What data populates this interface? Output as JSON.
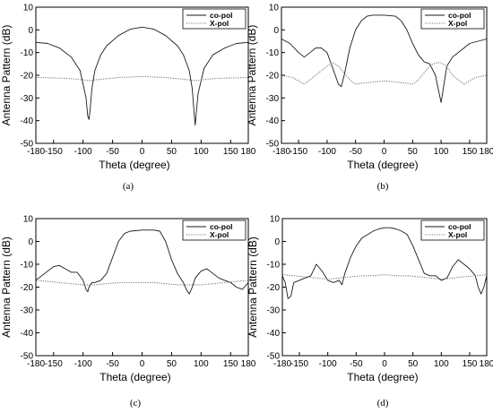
{
  "chart_data": [
    {
      "type": "line",
      "caption": "(a)",
      "xlabel": "Theta (degree)",
      "ylabel": "Antenna Pattern (dB)",
      "xlim": [
        -180,
        180
      ],
      "ylim": [
        -50,
        10
      ],
      "xticks": [
        "-180",
        "-150",
        "-100",
        "-50",
        "0",
        "50",
        "100",
        "150",
        "180"
      ],
      "yticks": [
        "10",
        "0",
        "-10",
        "-20",
        "-30",
        "-40",
        "-50"
      ],
      "grid": false,
      "legend": "top-right",
      "series": [
        {
          "name": "co-pol",
          "style": "solid",
          "x": [
            -180,
            -160,
            -140,
            -120,
            -105,
            -95,
            -92,
            -90,
            -88,
            -85,
            -80,
            -70,
            -60,
            -40,
            -20,
            0,
            20,
            40,
            60,
            70,
            80,
            85,
            88,
            90,
            92,
            95,
            105,
            120,
            140,
            160,
            180
          ],
          "y": [
            -5.5,
            -6,
            -8,
            -12,
            -18,
            -30,
            -38,
            -39.5,
            -35,
            -26,
            -18,
            -11,
            -7,
            -2.5,
            0.3,
            1.2,
            0.3,
            -2.5,
            -7,
            -11,
            -18,
            -26,
            -36,
            -42,
            -36,
            -28,
            -17,
            -11,
            -8,
            -6,
            -5.5
          ]
        },
        {
          "name": "X-pol",
          "style": "dotted",
          "x": [
            -180,
            -150,
            -120,
            -100,
            -90,
            -80,
            -60,
            -40,
            -20,
            0,
            20,
            40,
            60,
            80,
            90,
            100,
            120,
            150,
            180
          ],
          "y": [
            -21,
            -21.2,
            -21.5,
            -22,
            -22.5,
            -22,
            -21.5,
            -21,
            -20.8,
            -20.5,
            -20.8,
            -21,
            -21.5,
            -22,
            -22.5,
            -22,
            -21.5,
            -21.2,
            -21
          ]
        }
      ]
    },
    {
      "type": "line",
      "caption": "(b)",
      "xlabel": "Theta (degree)",
      "ylabel": "Antenna Pattern (dB)",
      "xlim": [
        -180,
        180
      ],
      "ylim": [
        -50,
        10
      ],
      "xticks": [
        "-180",
        "-150",
        "-100",
        "-50",
        "0",
        "50",
        "100",
        "150",
        "180"
      ],
      "yticks": [
        "10",
        "0",
        "-10",
        "-20",
        "-30",
        "-40",
        "-50"
      ],
      "grid": false,
      "legend": "top-right",
      "series": [
        {
          "name": "co-pol",
          "style": "solid",
          "x": [
            -180,
            -165,
            -150,
            -140,
            -130,
            -120,
            -110,
            -100,
            -90,
            -80,
            -75,
            -70,
            -60,
            -50,
            -40,
            -30,
            -20,
            0,
            20,
            30,
            40,
            50,
            60,
            70,
            80,
            90,
            95,
            100,
            105,
            110,
            120,
            130,
            140,
            150,
            165,
            180
          ],
          "y": [
            -4,
            -6,
            -10,
            -12,
            -10,
            -8,
            -8,
            -10,
            -17,
            -24,
            -25,
            -20,
            -8,
            0,
            4,
            6,
            6.5,
            6.5,
            6,
            4,
            0,
            -6,
            -11,
            -14,
            -15,
            -20,
            -26,
            -32,
            -24,
            -16,
            -12,
            -10,
            -8,
            -6,
            -5,
            -4
          ]
        },
        {
          "name": "X-pol",
          "style": "dotted",
          "x": [
            -180,
            -160,
            -140,
            -120,
            -100,
            -90,
            -80,
            -70,
            -60,
            -50,
            -40,
            -20,
            0,
            20,
            40,
            50,
            60,
            70,
            80,
            90,
            100,
            110,
            120,
            140,
            160,
            180
          ],
          "y": [
            -20,
            -21,
            -24,
            -20,
            -16,
            -14.5,
            -16,
            -19,
            -22,
            -24,
            -23.5,
            -23,
            -22.5,
            -23,
            -23.5,
            -24,
            -22,
            -19,
            -16,
            -14.5,
            -14.5,
            -16,
            -20,
            -24,
            -21,
            -20
          ]
        }
      ]
    },
    {
      "type": "line",
      "caption": "(c)",
      "xlabel": "Theta (degree)",
      "ylabel": "Antenna Pattern (dB)",
      "xlim": [
        -180,
        180
      ],
      "ylim": [
        -50,
        10
      ],
      "xticks": [
        "-180",
        "-150",
        "-100",
        "-50",
        "0",
        "50",
        "100",
        "150",
        "180"
      ],
      "yticks": [
        "10",
        "0",
        "-10",
        "-20",
        "-30",
        "-40",
        "-50"
      ],
      "grid": false,
      "legend": "top-right",
      "series": [
        {
          "name": "co-pol",
          "style": "solid",
          "x": [
            -180,
            -165,
            -150,
            -140,
            -130,
            -120,
            -110,
            -100,
            -95,
            -92,
            -90,
            -85,
            -80,
            -70,
            -60,
            -50,
            -40,
            -30,
            -20,
            0,
            20,
            30,
            40,
            50,
            60,
            70,
            75,
            80,
            85,
            90,
            100,
            110,
            120,
            130,
            140,
            150,
            160,
            170,
            180
          ],
          "y": [
            -17,
            -14,
            -11,
            -10.5,
            -12,
            -13.5,
            -13.5,
            -17,
            -21,
            -22,
            -20,
            -18,
            -18,
            -17,
            -14,
            -7,
            0,
            3.5,
            4.5,
            5,
            5,
            4.5,
            0,
            -8,
            -14,
            -18,
            -21,
            -23,
            -20,
            -16,
            -13,
            -12,
            -14,
            -16,
            -17,
            -18,
            -20,
            -21,
            -18
          ]
        },
        {
          "name": "X-pol",
          "style": "dotted",
          "x": [
            -180,
            -160,
            -140,
            -120,
            -100,
            -90,
            -80,
            -60,
            -40,
            -20,
            0,
            20,
            40,
            60,
            80,
            90,
            100,
            120,
            140,
            160,
            180
          ],
          "y": [
            -17,
            -17.5,
            -18,
            -18.5,
            -19,
            -19,
            -19,
            -18.5,
            -18,
            -18,
            -18,
            -18,
            -18.5,
            -19,
            -19,
            -19,
            -19,
            -18.5,
            -18,
            -17.5,
            -17
          ]
        }
      ]
    },
    {
      "type": "line",
      "caption": "(d)",
      "xlabel": "Theta (degree)",
      "ylabel": "Antenna Pattern (dB)",
      "xlim": [
        -180,
        180
      ],
      "ylim": [
        -50,
        10
      ],
      "xticks": [
        "-180",
        "-150",
        "-100",
        "-50",
        "0",
        "50",
        "100",
        "150",
        "180"
      ],
      "yticks": [
        "10",
        "0",
        "-10",
        "-20",
        "-30",
        "-40",
        "-50"
      ],
      "grid": false,
      "legend": "top-right",
      "series": [
        {
          "name": "co-pol",
          "style": "solid",
          "x": [
            -180,
            -175,
            -170,
            -165,
            -160,
            -150,
            -140,
            -130,
            -120,
            -110,
            -100,
            -90,
            -80,
            -75,
            -70,
            -60,
            -50,
            -40,
            -30,
            -20,
            -10,
            0,
            10,
            20,
            30,
            40,
            50,
            60,
            70,
            80,
            90,
            100,
            110,
            120,
            130,
            140,
            150,
            160,
            165,
            170,
            175,
            180
          ],
          "y": [
            -15,
            -18,
            -25,
            -24,
            -18,
            -17,
            -16,
            -15,
            -10,
            -13,
            -17,
            -18,
            -17,
            -19,
            -14,
            -7,
            -2,
            1.5,
            3,
            4.5,
            5.5,
            6,
            6,
            5.5,
            4.5,
            3,
            -2,
            -8,
            -14,
            -15,
            -15,
            -17,
            -16,
            -11,
            -8,
            -10,
            -12,
            -15,
            -20,
            -23,
            -20,
            -15
          ]
        },
        {
          "name": "X-pol",
          "style": "dotted",
          "x": [
            -180,
            -160,
            -140,
            -120,
            -100,
            -80,
            -60,
            -40,
            -20,
            0,
            20,
            40,
            60,
            80,
            100,
            120,
            140,
            160,
            180
          ],
          "y": [
            -14.5,
            -15,
            -15.5,
            -16,
            -16.5,
            -16,
            -15.5,
            -15,
            -15,
            -14.5,
            -15,
            -15,
            -15.5,
            -16,
            -16.5,
            -16,
            -15.5,
            -15,
            -14.5
          ]
        }
      ]
    }
  ],
  "style": {
    "co_pol_color": "#1a1a1a",
    "x_pol_color": "#7a7a7a",
    "axis_color": "#000000"
  }
}
